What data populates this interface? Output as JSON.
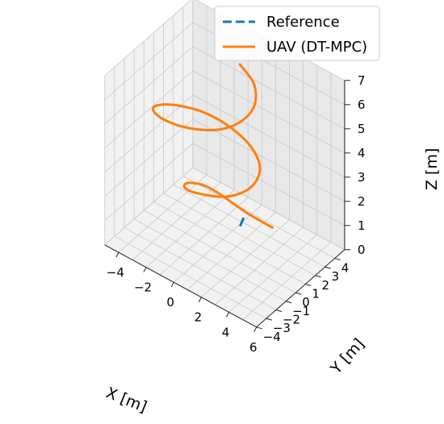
{
  "chart_data": {
    "type": "line",
    "projection": "3d",
    "xlabel": "X [m]",
    "ylabel": "Y [m]",
    "zlabel": "Z [m]",
    "xlim": [
      -5,
      6
    ],
    "ylim": [
      -4,
      5
    ],
    "zlim": [
      0,
      7
    ],
    "x_ticks": [
      "−4",
      "−2",
      "0",
      "2",
      "4",
      "6"
    ],
    "y_ticks": [
      "−4",
      "−3",
      "−2",
      "−1",
      "0",
      "1",
      "2",
      "3",
      "4"
    ],
    "z_ticks": [
      "0",
      "1",
      "2",
      "3",
      "4",
      "5",
      "6",
      "7"
    ],
    "grid": true,
    "legend_position": "top-right",
    "series": [
      {
        "name": "Reference",
        "color": "#1f77b4",
        "line_style": "dashed",
        "x": [
          2.0,
          2.1,
          2.2
        ],
        "y": [
          0.0,
          0.05,
          0.1
        ],
        "z": [
          1.55,
          1.75,
          1.95
        ]
      },
      {
        "name": "UAV (DT-MPC)",
        "color": "#ff7f0e",
        "line_style": "solid",
        "x": [
          3.6,
          2.9,
          2.2,
          1.4,
          0.4,
          -0.5,
          -1.0,
          -0.6,
          0.6,
          2.3,
          3.3,
          3.2,
          2.0,
          0.2,
          -1.6,
          -3.0,
          -3.7,
          -3.4,
          -2.2,
          -0.4,
          1.4,
          2.4,
          2.6,
          1.9,
          0.6
        ],
        "y": [
          1.0,
          0.5,
          0.2,
          0.0,
          -0.1,
          -0.4,
          -1.2,
          -2.0,
          -2.3,
          -1.9,
          -0.9,
          0.3,
          1.2,
          1.6,
          1.4,
          0.6,
          -0.4,
          -1.3,
          -1.9,
          -2.0,
          -1.5,
          -0.5,
          0.6,
          1.5,
          1.9
        ],
        "z": [
          1.6,
          1.9,
          2.1,
          2.3,
          2.45,
          2.6,
          2.8,
          3.0,
          3.25,
          3.5,
          3.8,
          4.1,
          4.3,
          4.45,
          4.6,
          4.75,
          4.9,
          5.1,
          5.3,
          5.55,
          5.85,
          6.15,
          6.5,
          6.85,
          7.1
        ]
      }
    ]
  }
}
